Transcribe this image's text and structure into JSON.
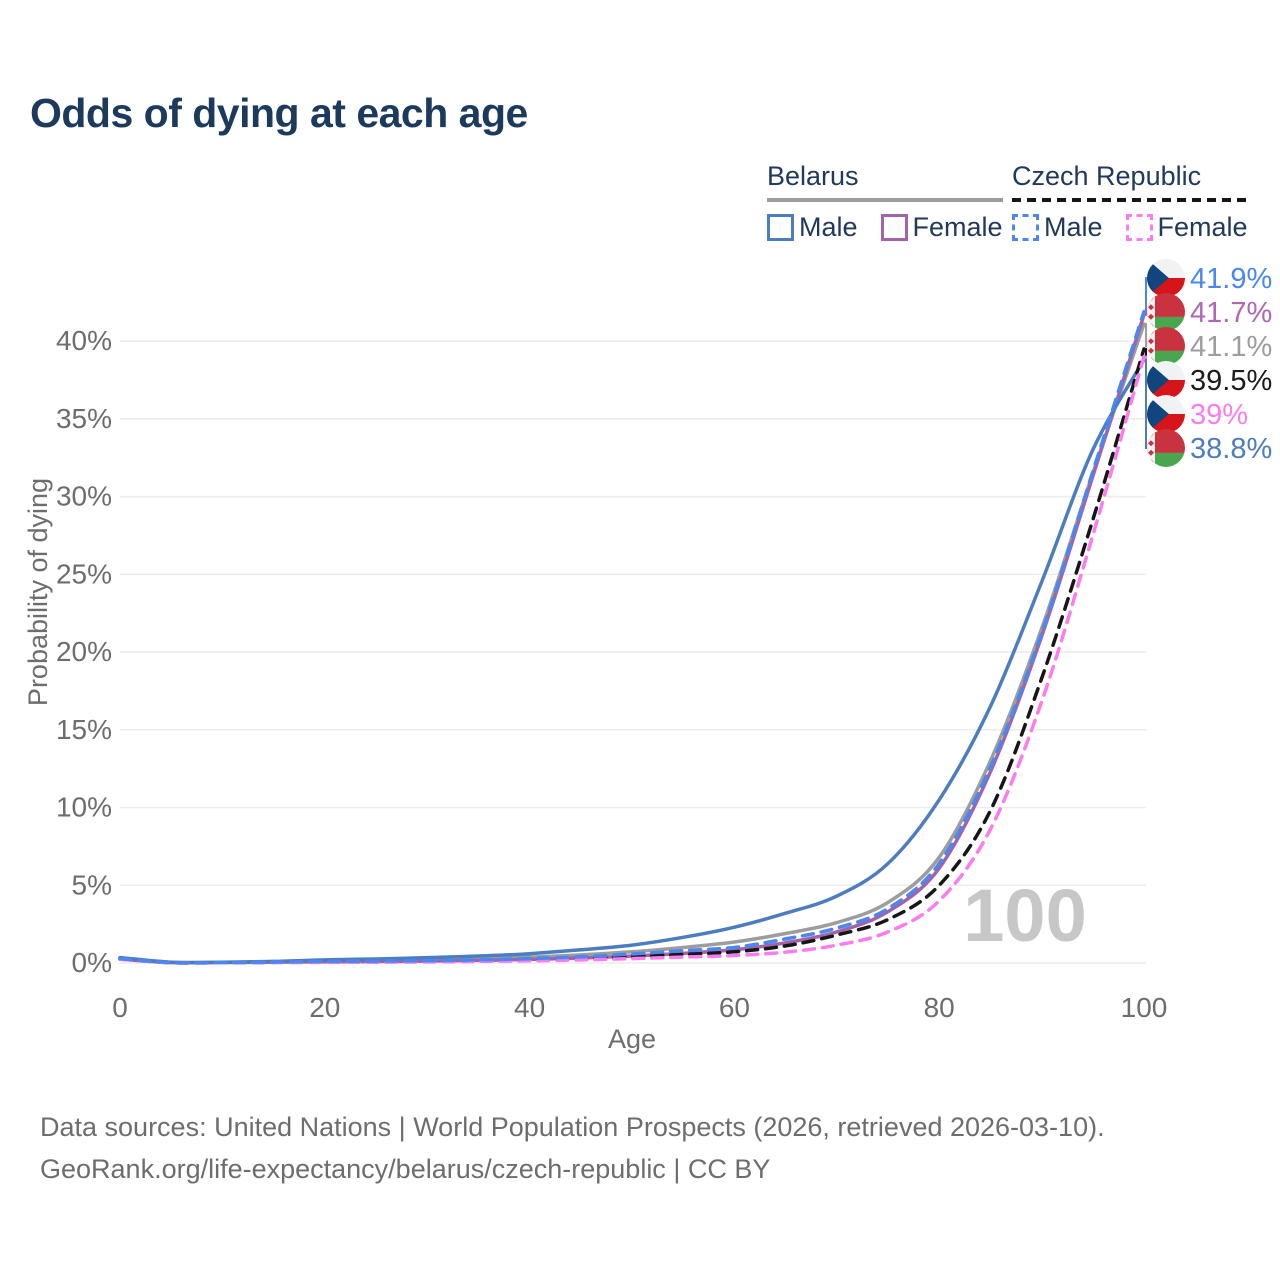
{
  "header": {
    "title": "Odds of dying at each age"
  },
  "legend": {
    "belarus": {
      "label": "Belarus",
      "male": "Male",
      "female": "Female"
    },
    "czech": {
      "label": "Czech Republic",
      "male": "Male",
      "female": "Female"
    }
  },
  "watermark": "100",
  "footer": {
    "line1": "Data sources: United Nations | World Population Prospects (2026, retrieved 2026-03-10).",
    "line2": "GeoRank.org/life-expectancy/belarus/czech-republic | CC BY"
  },
  "chart_data": {
    "type": "line",
    "title": "Odds of dying at each age",
    "xlabel": "Age",
    "ylabel": "Probability of dying",
    "xlim": [
      0,
      100
    ],
    "ylim": [
      0,
      43
    ],
    "grid": "horizontal",
    "legend_position": "top-right",
    "x": [
      0,
      5,
      10,
      15,
      20,
      25,
      30,
      35,
      40,
      45,
      50,
      55,
      60,
      65,
      70,
      75,
      80,
      85,
      90,
      95,
      100
    ],
    "xticks": {
      "values": [
        0,
        20,
        40,
        60,
        80,
        100
      ],
      "labels": [
        "0",
        "20",
        "40",
        "60",
        "80",
        "100"
      ]
    },
    "yticks": {
      "values": [
        0,
        5,
        10,
        15,
        20,
        25,
        30,
        35,
        40
      ],
      "labels": [
        "0%",
        "5%",
        "10%",
        "15%",
        "20%",
        "25%",
        "30%",
        "35%",
        "40%"
      ]
    },
    "series": [
      {
        "id": "belarus-both",
        "country": "Belarus",
        "sex": "Both sexes",
        "color": "#9d9d9d",
        "label_color": "#9d9d9d",
        "dash": "solid",
        "flag": "belarus",
        "end_label": "41.1%",
        "end_value": 41.1,
        "values": [
          0.3,
          0.04,
          0.04,
          0.08,
          0.13,
          0.17,
          0.23,
          0.3,
          0.38,
          0.52,
          0.72,
          1.0,
          1.35,
          1.9,
          2.6,
          3.9,
          6.8,
          13.0,
          21.5,
          31.5,
          41.1
        ]
      },
      {
        "id": "belarus-female",
        "country": "Belarus",
        "sex": "Female",
        "color": "#a263ab",
        "label_color": "#af66b5",
        "dash": "solid",
        "flag": "belarus",
        "end_label": "41.7%",
        "end_value": 41.7,
        "values": [
          0.25,
          0.03,
          0.03,
          0.05,
          0.07,
          0.09,
          0.12,
          0.17,
          0.23,
          0.32,
          0.45,
          0.62,
          0.85,
          1.3,
          2.0,
          3.3,
          6.1,
          12.3,
          21.0,
          31.3,
          41.7
        ]
      },
      {
        "id": "belarus-male",
        "country": "Belarus",
        "sex": "Male",
        "color": "#4c7dbf",
        "label_color": "#4c7dbf",
        "dash": "solid",
        "flag": "belarus",
        "end_label": "38.8%",
        "end_value": 38.8,
        "values": [
          0.35,
          0.05,
          0.05,
          0.1,
          0.2,
          0.26,
          0.35,
          0.45,
          0.6,
          0.85,
          1.15,
          1.65,
          2.3,
          3.2,
          4.3,
          6.4,
          10.5,
          16.5,
          24.5,
          33.0,
          38.8
        ]
      },
      {
        "id": "czech-both",
        "country": "Czech Republic",
        "sex": "Both sexes",
        "color": "#161616",
        "label_color": "#1c1c1c",
        "dash": "dashed",
        "flag": "czech",
        "end_label": "39.5%",
        "end_value": 39.5,
        "values": [
          0.26,
          0.02,
          0.02,
          0.04,
          0.07,
          0.09,
          0.11,
          0.15,
          0.2,
          0.29,
          0.42,
          0.55,
          0.72,
          1.1,
          1.8,
          2.8,
          5.0,
          9.8,
          18.3,
          28.5,
          39.5
        ]
      },
      {
        "id": "czech-female",
        "country": "Czech Republic",
        "sex": "Female",
        "color": "#fc7cee",
        "label_color": "#fc7cee",
        "dash": "dashed",
        "flag": "czech",
        "end_label": "39%",
        "end_value": 39.0,
        "values": [
          0.24,
          0.02,
          0.02,
          0.03,
          0.04,
          0.05,
          0.07,
          0.1,
          0.14,
          0.2,
          0.28,
          0.38,
          0.48,
          0.7,
          1.15,
          2.0,
          4.0,
          8.6,
          16.8,
          27.5,
          39.0
        ]
      },
      {
        "id": "czech-male",
        "country": "Czech Republic",
        "sex": "Male",
        "color": "#4c87f0",
        "label_color": "#4c87f0",
        "dash": "dashed",
        "flag": "czech",
        "end_label": "41.9%",
        "end_value": 41.9,
        "values": [
          0.28,
          0.03,
          0.03,
          0.06,
          0.1,
          0.12,
          0.15,
          0.2,
          0.28,
          0.4,
          0.58,
          0.8,
          1.0,
          1.55,
          2.25,
          3.5,
          6.4,
          12.6,
          21.2,
          31.6,
          41.9
        ]
      }
    ]
  }
}
